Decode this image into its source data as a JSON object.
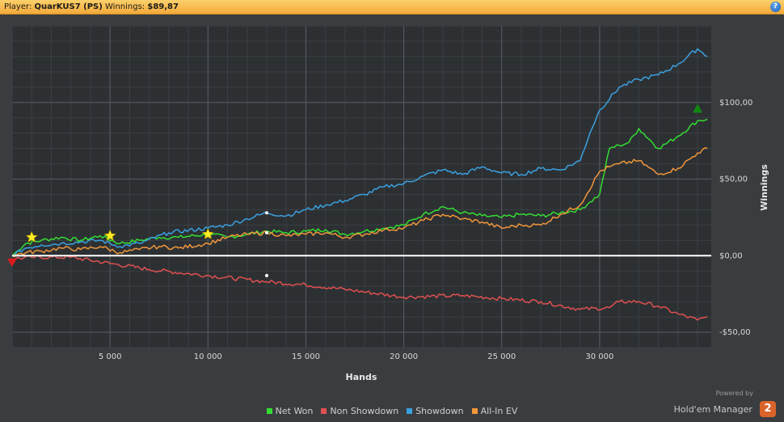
{
  "header": {
    "player_label": "Player:",
    "player_name": "QuarKUS7 (PS)",
    "winnings_label": "Winnings:",
    "winnings_value": "$89,87",
    "help_glyph": "?"
  },
  "branding": {
    "powered_by": "Powered by",
    "name": "Hold'em Manager",
    "logo_text": "2"
  },
  "chart_data": {
    "type": "line",
    "xlabel": "Hands",
    "ylabel": "Winnings",
    "xlim": [
      0,
      35700
    ],
    "ylim": [
      -60,
      150
    ],
    "x_ticks": [
      5000,
      10000,
      15000,
      20000,
      25000,
      30000
    ],
    "x_tick_labels": [
      "5 000",
      "10 000",
      "15 000",
      "20 000",
      "25 000",
      "30 000"
    ],
    "y_ticks": [
      -50,
      0,
      50,
      100
    ],
    "y_tick_labels": [
      "-$50,00",
      "$0,00",
      "$50,00",
      "$100,00"
    ],
    "grid": true,
    "legend_position": "bottom",
    "series": [
      {
        "name": "Net Won",
        "color": "#33dd33",
        "x": [
          0,
          700,
          1500,
          2500,
          3500,
          4500,
          5500,
          6500,
          7500,
          8500,
          10000,
          11000,
          12000,
          13000,
          14000,
          15000,
          16000,
          17000,
          18000,
          19000,
          20000,
          21000,
          22000,
          23000,
          24000,
          25000,
          26000,
          27000,
          28000,
          29000,
          29500,
          30000,
          30500,
          31000,
          31500,
          32000,
          33000,
          34000,
          35000,
          35500
        ],
        "y": [
          0,
          8,
          10,
          12,
          10,
          13,
          8,
          10,
          12,
          12,
          14,
          12,
          14,
          16,
          15,
          16,
          17,
          14,
          16,
          18,
          20,
          27,
          32,
          28,
          26,
          25,
          27,
          26,
          28,
          30,
          35,
          40,
          70,
          72,
          74,
          83,
          70,
          78,
          88,
          89
        ]
      },
      {
        "name": "Non Showdown",
        "color": "#e05050",
        "x": [
          0,
          1000,
          3000,
          5000,
          7000,
          10000,
          13000,
          15000,
          17000,
          20000,
          23000,
          25000,
          27000,
          29000,
          30500,
          31000,
          32000,
          33000,
          34000,
          35000,
          35500
        ],
        "y": [
          -2,
          -1,
          -1,
          -5,
          -9,
          -13,
          -17,
          -19,
          -22,
          -27,
          -26,
          -28,
          -30,
          -35,
          -34,
          -30,
          -30,
          -33,
          -38,
          -42,
          -40
        ]
      },
      {
        "name": "Showdown",
        "color": "#3aa0e0",
        "x": [
          0,
          700,
          1500,
          2500,
          3500,
          4500,
          5500,
          6500,
          8000,
          10000,
          11000,
          12000,
          13000,
          14000,
          15000,
          16000,
          17000,
          18000,
          19000,
          20000,
          21000,
          22000,
          23000,
          24000,
          25000,
          26000,
          27000,
          28000,
          29000,
          29500,
          30000,
          31000,
          32000,
          33000,
          34000,
          35000,
          35500
        ],
        "y": [
          0,
          5,
          7,
          8,
          9,
          10,
          6,
          8,
          15,
          18,
          20,
          24,
          28,
          26,
          30,
          33,
          36,
          40,
          45,
          47,
          52,
          56,
          53,
          58,
          54,
          53,
          57,
          56,
          62,
          80,
          95,
          110,
          115,
          118,
          125,
          135,
          130
        ]
      },
      {
        "name": "All-In EV",
        "color": "#f0963a",
        "x": [
          0,
          700,
          1500,
          2500,
          3500,
          4500,
          5500,
          6500,
          7500,
          8500,
          10000,
          11000,
          12000,
          13000,
          14000,
          15000,
          16000,
          17000,
          18000,
          19000,
          20000,
          21000,
          22000,
          23000,
          24000,
          25000,
          26000,
          27000,
          28000,
          29000,
          30000,
          30500,
          31000,
          32000,
          33000,
          34000,
          35000,
          35500
        ],
        "y": [
          0,
          2,
          3,
          5,
          4,
          6,
          2,
          4,
          6,
          5,
          8,
          12,
          14,
          15,
          13,
          14,
          15,
          12,
          14,
          17,
          18,
          23,
          27,
          24,
          22,
          18,
          20,
          20,
          27,
          33,
          55,
          58,
          60,
          62,
          53,
          57,
          67,
          70
        ]
      }
    ],
    "annotations": [
      {
        "type": "star",
        "x": 1000,
        "y": 12,
        "color": "#ffee22"
      },
      {
        "type": "star",
        "x": 5000,
        "y": 13,
        "color": "#ffee22"
      },
      {
        "type": "star",
        "x": 10000,
        "y": 14,
        "color": "#ffee22"
      },
      {
        "type": "triangle-down",
        "x": 0,
        "y": -4,
        "color": "#dd1a1a"
      },
      {
        "type": "triangle-up",
        "x": 35000,
        "y": 96,
        "color": "#118811"
      },
      {
        "type": "dot",
        "x": 13000,
        "y": 28,
        "color": "#ffffff"
      },
      {
        "type": "dot",
        "x": 13000,
        "y": 15,
        "color": "#ffffff"
      },
      {
        "type": "dot",
        "x": 13000,
        "y": -13,
        "color": "#ffffff"
      }
    ]
  }
}
